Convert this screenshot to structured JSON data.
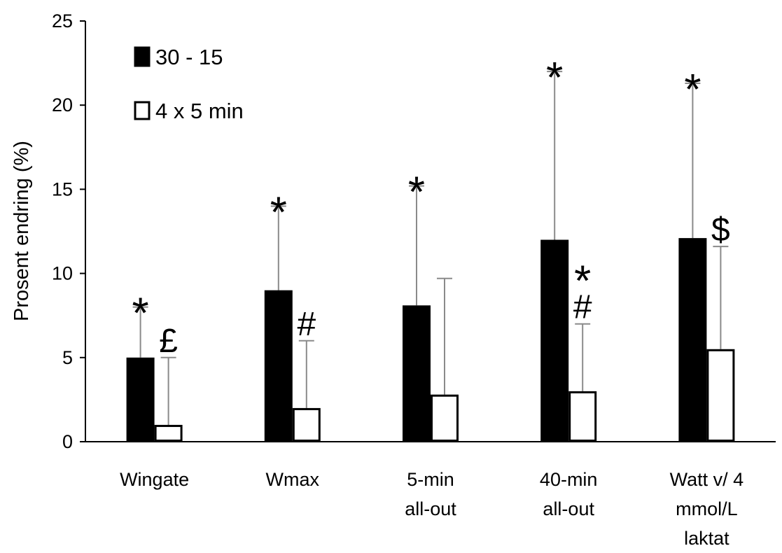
{
  "chart_data": {
    "type": "bar",
    "title": "",
    "xlabel": "",
    "ylabel": "Prosent endring (%)",
    "ylim": [
      0,
      25
    ],
    "yticks": [
      "0",
      "5",
      "10",
      "15",
      "20",
      "25"
    ],
    "ytick_values": [
      0,
      5,
      10,
      15,
      20,
      25
    ],
    "grid": false,
    "legend_position": "top-left",
    "categories": [
      [
        "Wingate"
      ],
      [
        "Wmax"
      ],
      [
        "5-min",
        "all-out"
      ],
      [
        "40-min",
        "all-out"
      ],
      [
        "Watt v/ 4",
        "mmol/L",
        "laktat"
      ]
    ],
    "series": [
      {
        "name": "30 - 15",
        "fill": "#000000",
        "values": [
          5.0,
          9.0,
          8.1,
          12.0,
          12.1
        ],
        "error": [
          3.0,
          5.0,
          7.1,
          10.0,
          9.2
        ],
        "annotations": [
          [
            "*"
          ],
          [
            "*"
          ],
          [
            "*"
          ],
          [
            "*"
          ],
          [
            "*"
          ]
        ]
      },
      {
        "name": "4 x 5 min",
        "fill": "#ffffff",
        "values": [
          1.0,
          2.0,
          2.8,
          3.0,
          5.5
        ],
        "error": [
          4.0,
          4.0,
          6.9,
          4.0,
          6.1
        ],
        "annotations": [
          [
            "£"
          ],
          [
            "#"
          ],
          [],
          [
            "#",
            "*"
          ],
          [
            "$"
          ]
        ]
      }
    ]
  }
}
